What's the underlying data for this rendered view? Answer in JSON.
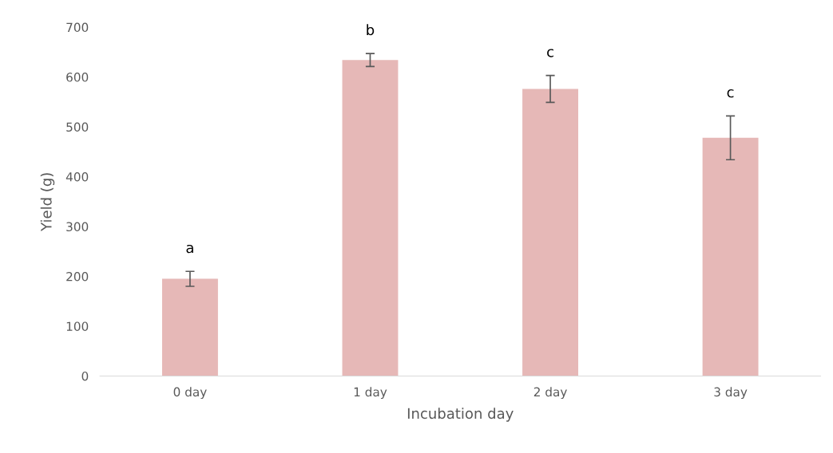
{
  "chart_data": {
    "type": "bar",
    "xlabel": "Incubation day",
    "ylabel": "Yield (g)",
    "categories": [
      "0 day",
      "1 day",
      "2 day",
      "3 day"
    ],
    "values": [
      195,
      634,
      576,
      478
    ],
    "errors": [
      15,
      13,
      27,
      44
    ],
    "color": "#e6b8b7",
    "ylim": [
      0,
      700
    ],
    "yticks": [
      0,
      100,
      200,
      300,
      400,
      500,
      600,
      700
    ],
    "grid": false,
    "annotations": [
      "a",
      "b",
      "c",
      "c"
    ]
  }
}
